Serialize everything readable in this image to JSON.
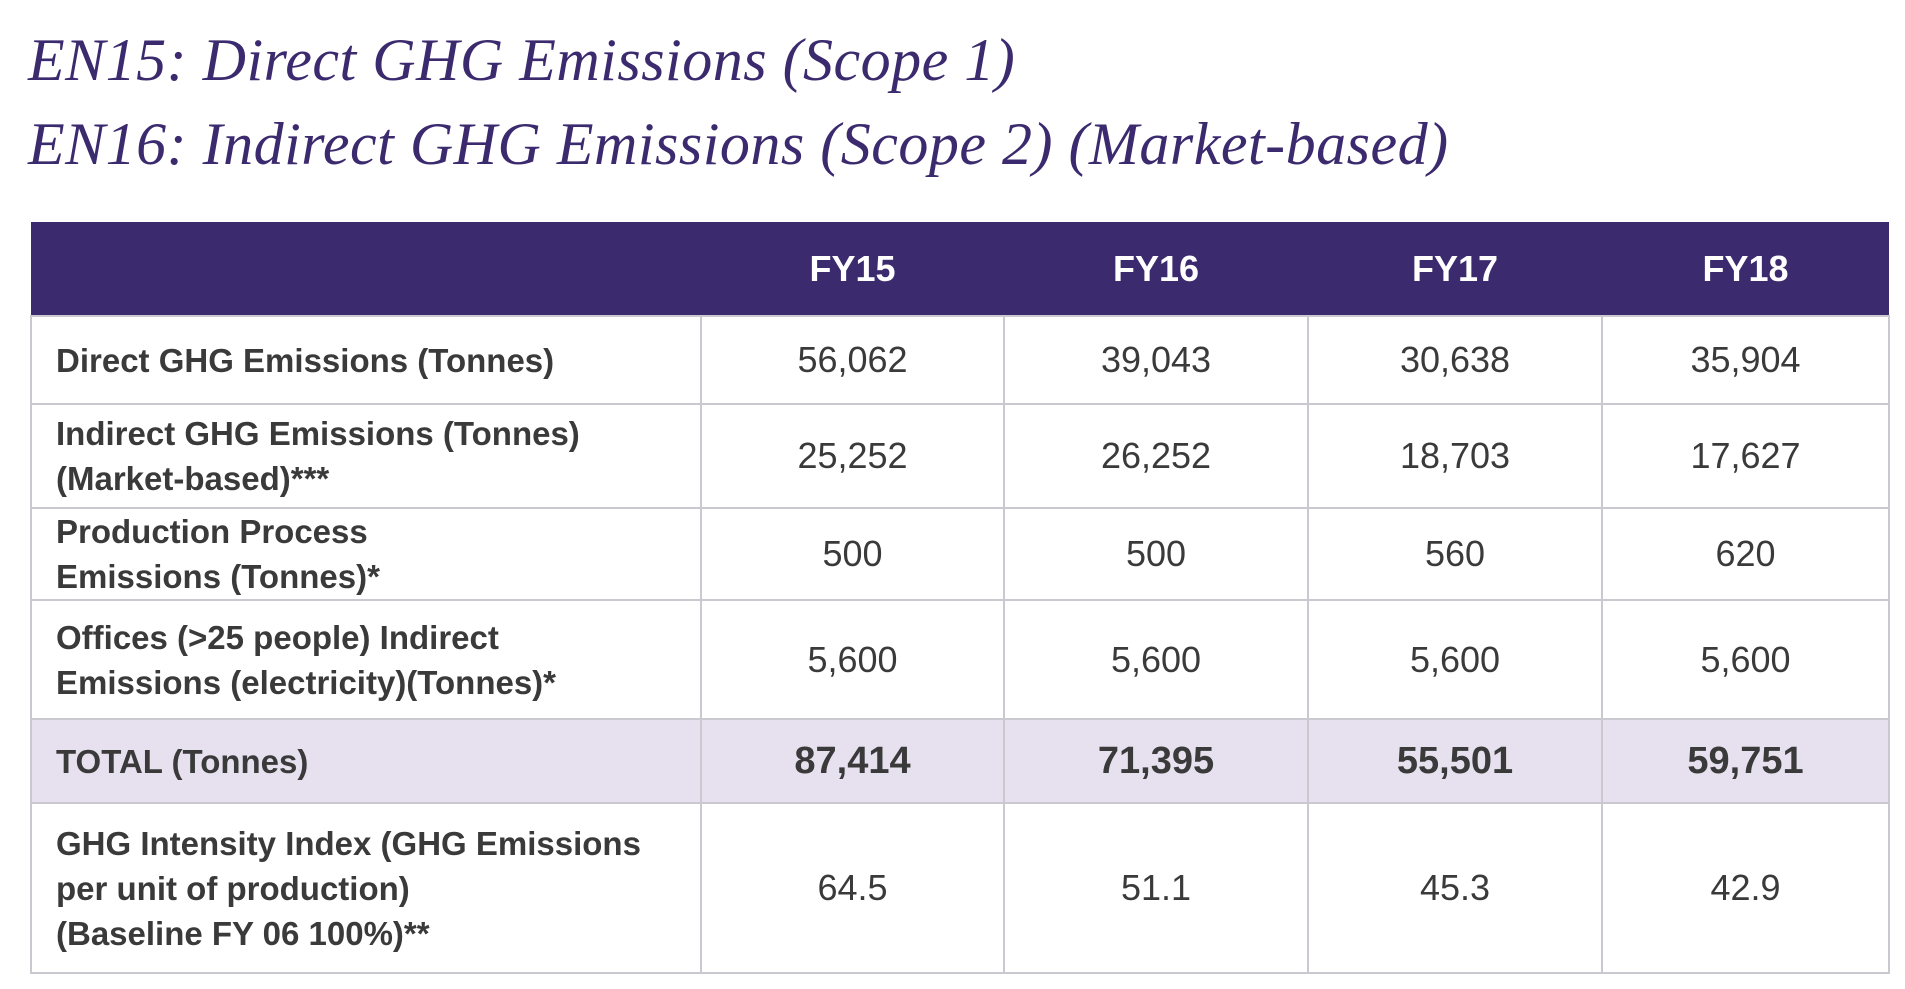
{
  "title": {
    "line1": "EN15: Direct GHG Emissions (Scope 1)",
    "line2": "EN16: Indirect GHG Emissions (Scope 2) (Market-based)"
  },
  "table": {
    "headers": [
      "",
      "FY15",
      "FY16",
      "FY17",
      "FY18"
    ],
    "rows": [
      {
        "label": [
          "Direct GHG Emissions (Tonnes)"
        ],
        "values": [
          "56,062",
          "39,043",
          "30,638",
          "35,904"
        ]
      },
      {
        "label": [
          "Indirect GHG Emissions (Tonnes)",
          "(Market-based)***"
        ],
        "values": [
          "25,252",
          "26,252",
          "18,703",
          "17,627"
        ]
      },
      {
        "label": [
          "Production Process",
          "Emissions (Tonnes)*"
        ],
        "values": [
          "500",
          "500",
          "560",
          "620"
        ]
      },
      {
        "label": [
          "Offices (>25 people) Indirect",
          "Emissions (electricity)(Tonnes)*"
        ],
        "values": [
          "5,600",
          "5,600",
          "5,600",
          "5,600"
        ]
      },
      {
        "label": [
          "TOTAL (Tonnes)"
        ],
        "values": [
          "87,414",
          "71,395",
          "55,501",
          "59,751"
        ]
      },
      {
        "label": [
          "GHG Intensity Index (GHG Emissions",
          "per unit of production)",
          "(Baseline FY 06 100%)**"
        ],
        "values": [
          "64.5",
          "51.1",
          "45.3",
          "42.9"
        ]
      }
    ]
  },
  "colors": {
    "header_bg": "#3b2a6e",
    "title_text": "#3b2a6e",
    "total_row_bg": "#e7e0ef",
    "grid_lines": "#c9c9cf"
  }
}
